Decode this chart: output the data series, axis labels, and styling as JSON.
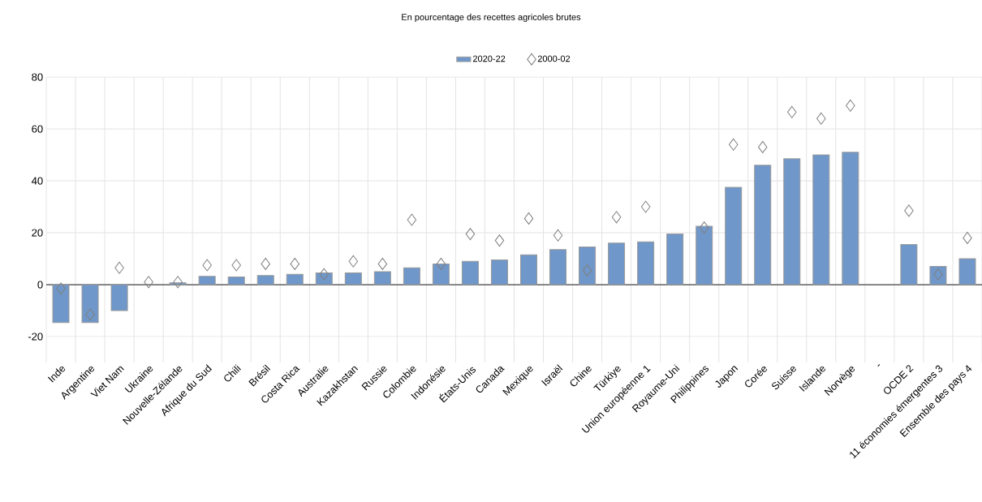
{
  "chart_data": {
    "type": "bar",
    "title": "En pourcentage des recettes agricoles brutes",
    "categories": [
      "Inde",
      "Argentine",
      "Viet Nam",
      "Ukraine",
      "Nouvelle-Zélande",
      "Afrique du Sud",
      "Chili",
      "Brésil",
      "Costa Rica",
      "Australie",
      "Kazakhstan",
      "Russie",
      "Colombie",
      "Indonésie",
      "États-Unis",
      "Canada",
      "Mexique",
      "Israël",
      "Chine",
      "Türkiye",
      "Union européenne 1",
      "Royaume-Uni",
      "Philippines",
      "Japon",
      "Corée",
      "Suisse",
      "Islande",
      "Norvège",
      "-",
      "OCDE 2",
      "11 économies émergentes 3",
      "Ensemble des pays 4"
    ],
    "series": [
      {
        "name": "2020-22",
        "color": "#6f97c9",
        "values": [
          -14.6,
          -14.6,
          -10,
          null,
          0.7,
          3.2,
          3,
          3.5,
          4,
          4.5,
          4.5,
          5,
          6.5,
          8,
          9,
          9.5,
          11.5,
          13.5,
          14.5,
          16,
          16.5,
          19.5,
          22.5,
          37.5,
          46,
          48.5,
          50,
          51,
          null,
          15.5,
          7,
          10
        ]
      },
      {
        "name": "2000-02",
        "type": "scatter",
        "marker": "diamond",
        "color": "#808080",
        "values": [
          -1.5,
          -11.5,
          6.5,
          1,
          1,
          7.5,
          7.5,
          8,
          8,
          4,
          9,
          8,
          25,
          8,
          19.5,
          17,
          25.5,
          19,
          5.5,
          26,
          30,
          null,
          22,
          54,
          53,
          66.5,
          64,
          69,
          null,
          28.5,
          4,
          18
        ]
      }
    ],
    "ylim": [
      -30,
      80
    ],
    "yticks": [
      -20,
      0,
      20,
      40,
      60,
      80
    ],
    "grid": true,
    "legend": "top"
  }
}
